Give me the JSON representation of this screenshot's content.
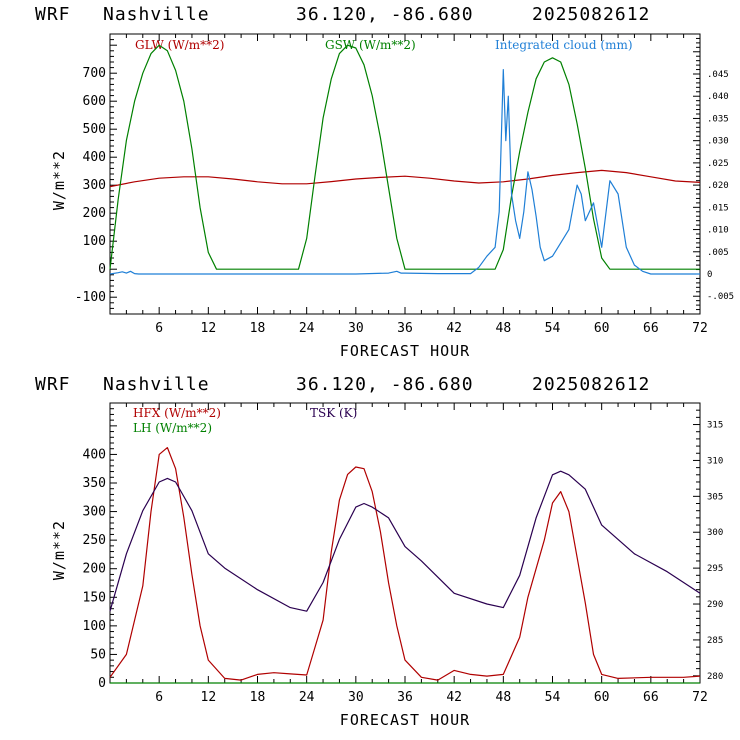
{
  "colors": {
    "red": "#b00000",
    "green": "#008000",
    "blue": "#1f7fd6",
    "purple": "#2a0050"
  },
  "chart_data": [
    {
      "type": "line",
      "header": {
        "model": "WRF",
        "site": "Nashville",
        "coords": "36.120, -86.680",
        "date": "2025082612"
      },
      "xlabel": "FORECAST HOUR",
      "ylabel": "W/m**2",
      "xlim": [
        0,
        72
      ],
      "ylim": [
        -160,
        840
      ],
      "yticks": [
        -100,
        0,
        100,
        200,
        300,
        400,
        500,
        600,
        700
      ],
      "xticks": [
        6,
        12,
        18,
        24,
        30,
        36,
        42,
        48,
        54,
        60,
        66,
        72
      ],
      "y2lim": [
        -0.009,
        0.054
      ],
      "y2ticks": [
        -0.005,
        0,
        0.005,
        0.01,
        0.015,
        0.02,
        0.025,
        0.03,
        0.035,
        0.04,
        0.045
      ],
      "y2ticklabels": [
        "-.005",
        "0",
        ".005",
        ".010",
        ".015",
        ".020",
        ".025",
        ".030",
        ".035",
        ".040",
        ".045"
      ],
      "series": [
        {
          "name": "GLW (W/m**2)",
          "axis": "left",
          "color": "red",
          "x": [
            0,
            3,
            6,
            9,
            12,
            15,
            18,
            21,
            24,
            27,
            30,
            33,
            36,
            39,
            42,
            45,
            48,
            51,
            54,
            57,
            60,
            63,
            66,
            69,
            72
          ],
          "values": [
            295,
            312,
            325,
            330,
            330,
            322,
            312,
            305,
            305,
            313,
            322,
            328,
            332,
            325,
            315,
            308,
            312,
            322,
            335,
            345,
            353,
            345,
            330,
            315,
            310
          ]
        },
        {
          "name": "GSW (W/m**2)",
          "axis": "left",
          "color": "green",
          "x": [
            0,
            1,
            2,
            3,
            4,
            5,
            6,
            7,
            8,
            9,
            10,
            11,
            12,
            13,
            23,
            24,
            25,
            26,
            27,
            28,
            29,
            30,
            31,
            32,
            33,
            34,
            35,
            36,
            37,
            47,
            48,
            49,
            50,
            51,
            52,
            53,
            54,
            55,
            56,
            57,
            58,
            59,
            60,
            61,
            72
          ],
          "values": [
            0,
            250,
            460,
            600,
            700,
            770,
            800,
            780,
            710,
            600,
            430,
            220,
            60,
            0,
            0,
            110,
            330,
            540,
            680,
            770,
            800,
            790,
            730,
            620,
            470,
            290,
            110,
            0,
            0,
            0,
            70,
            260,
            420,
            560,
            680,
            740,
            755,
            740,
            660,
            520,
            360,
            180,
            40,
            0,
            0
          ]
        },
        {
          "name": "Integrated cloud (mm)",
          "axis": "right",
          "color": "blue",
          "x": [
            0,
            1,
            1.5,
            2,
            2.5,
            3,
            3.5,
            4,
            10,
            20,
            30,
            34,
            35,
            35.5,
            36,
            40,
            44,
            45,
            46,
            47,
            47.5,
            48,
            48.3,
            48.6,
            49,
            49.5,
            50,
            50.5,
            51,
            51.5,
            52,
            52.5,
            53,
            54,
            55,
            56,
            57,
            57.5,
            58,
            59,
            60,
            61,
            62,
            63,
            64,
            65,
            66,
            72
          ],
          "values": [
            0,
            0.0003,
            0.0005,
            0.0002,
            0.0006,
            0.0001,
            0,
            0,
            0,
            0,
            0,
            0.0002,
            0.0006,
            0.0002,
            0.0002,
            0.0001,
            0.0001,
            0.0015,
            0.004,
            0.006,
            0.014,
            0.046,
            0.03,
            0.04,
            0.018,
            0.012,
            0.008,
            0.014,
            0.023,
            0.019,
            0.013,
            0.006,
            0.003,
            0.004,
            0.007,
            0.01,
            0.02,
            0.018,
            0.012,
            0.016,
            0.006,
            0.021,
            0.018,
            0.006,
            0.002,
            0.0006,
            0,
            0
          ]
        }
      ]
    },
    {
      "type": "line",
      "header": {
        "model": "WRF",
        "site": "Nashville",
        "coords": "36.120, -86.680",
        "date": "2025082612"
      },
      "xlabel": "FORECAST HOUR",
      "ylabel": "W/m**2",
      "xlim": [
        0,
        72
      ],
      "ylim": [
        0,
        490
      ],
      "yticks": [
        0,
        50,
        100,
        150,
        200,
        250,
        300,
        350,
        400
      ],
      "xticks": [
        6,
        12,
        18,
        24,
        30,
        36,
        42,
        48,
        54,
        60,
        66,
        72
      ],
      "y2lim": [
        279,
        318
      ],
      "y2ticks": [
        280,
        285,
        290,
        295,
        300,
        305,
        310,
        315
      ],
      "series": [
        {
          "name": "HFX (W/m**2)",
          "axis": "left",
          "color": "red",
          "x": [
            0,
            2,
            4,
            5,
            6,
            7,
            8,
            9,
            10,
            11,
            12,
            14,
            16,
            18,
            20,
            22,
            24,
            26,
            27,
            28,
            29,
            30,
            31,
            32,
            33,
            34,
            35,
            36,
            38,
            40,
            42,
            44,
            46,
            48,
            50,
            51,
            52,
            53,
            54,
            55,
            56,
            57,
            58,
            59,
            60,
            62,
            66,
            70,
            72
          ],
          "values": [
            10,
            50,
            170,
            300,
            400,
            412,
            375,
            290,
            190,
            100,
            40,
            8,
            5,
            15,
            18,
            16,
            14,
            110,
            230,
            320,
            365,
            378,
            375,
            335,
            265,
            175,
            100,
            40,
            10,
            5,
            22,
            15,
            12,
            15,
            80,
            150,
            200,
            250,
            315,
            335,
            300,
            220,
            140,
            50,
            15,
            8,
            10,
            10,
            12
          ]
        },
        {
          "name": "LH (W/m**2)",
          "axis": "left",
          "color": "green",
          "x": [
            0,
            72
          ],
          "values": [
            0,
            0
          ]
        },
        {
          "name": "TSK (K)",
          "axis": "right",
          "color": "purple",
          "x": [
            0,
            2,
            4,
            6,
            7,
            8,
            10,
            12,
            14,
            18,
            22,
            24,
            26,
            28,
            30,
            31,
            32,
            34,
            36,
            38,
            42,
            46,
            48,
            50,
            52,
            54,
            55,
            56,
            58,
            60,
            64,
            68,
            72
          ],
          "values": [
            289,
            297,
            303,
            307,
            307.5,
            307,
            303,
            297,
            295,
            292,
            289.5,
            289,
            293,
            299,
            303.5,
            304,
            303.5,
            302,
            298,
            296,
            291.5,
            290,
            289.5,
            294,
            302,
            308,
            308.5,
            308,
            306,
            301,
            297,
            294.5,
            291.5
          ]
        }
      ]
    }
  ]
}
